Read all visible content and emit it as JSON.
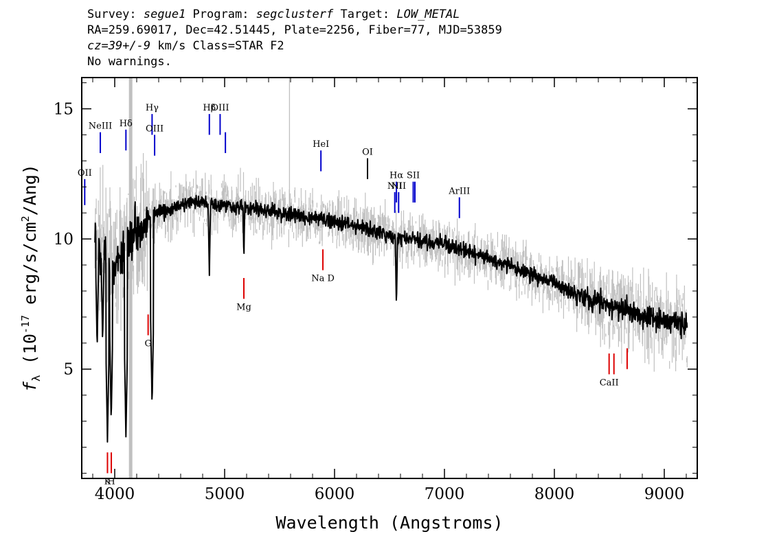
{
  "header": {
    "line1": {
      "survey_label": "Survey: ",
      "survey": "segue1",
      "program_label": " Program: ",
      "program": "segclusterf",
      "target_label": " Target: ",
      "target": "LOW_METAL"
    },
    "line2": "RA=259.69017, Dec=42.51445, Plate=2256, Fiber=77, MJD=53859",
    "line3": {
      "cz_label": "cz=",
      "cz": "39+/-9",
      "rest": " km/s Class=STAR F2"
    },
    "line4": "No warnings."
  },
  "colors": {
    "flux": "#000000",
    "error": "#c0c0c0",
    "emission": "#0000cc",
    "absorption": "#dd0000",
    "emission_alt": "#000000"
  },
  "chart_data": {
    "type": "line",
    "xlabel": "Wavelength (Angstroms)",
    "ylabel_prefix": "f",
    "ylabel_sub": "λ",
    "ylabel_mid": " (10",
    "ylabel_exp": "-17",
    "ylabel_unit": " erg/s/cm",
    "ylabel_exp2": "2",
    "ylabel_end": "/Ang)",
    "xlim": [
      3700,
      9300
    ],
    "ylim": [
      0.8,
      16.2
    ],
    "x_ticks": [
      4000,
      5000,
      6000,
      7000,
      8000,
      9000
    ],
    "y_ticks": [
      5,
      10,
      15
    ],
    "spectrum_range": [
      3820,
      9210
    ],
    "continuum": [
      [
        3820,
        10.0
      ],
      [
        3900,
        9.5
      ],
      [
        4000,
        8.9
      ],
      [
        4100,
        9.8
      ],
      [
        4200,
        10.4
      ],
      [
        4300,
        10.8
      ],
      [
        4400,
        11.0
      ],
      [
        4500,
        11.1
      ],
      [
        4600,
        11.3
      ],
      [
        4700,
        11.4
      ],
      [
        4800,
        11.4
      ],
      [
        5000,
        11.3
      ],
      [
        5200,
        11.2
      ],
      [
        5500,
        11.0
      ],
      [
        5800,
        10.8
      ],
      [
        6000,
        10.7
      ],
      [
        6200,
        10.5
      ],
      [
        6500,
        10.1
      ],
      [
        7000,
        9.8
      ],
      [
        7500,
        9.1
      ],
      [
        8000,
        8.3
      ],
      [
        8500,
        7.4
      ],
      [
        9000,
        6.9
      ],
      [
        9210,
        6.7
      ]
    ],
    "absorption_features": [
      {
        "x": 3934,
        "y": 2.2
      },
      {
        "x": 3968,
        "y": 3.0
      },
      {
        "x": 4102,
        "y": 2.4
      },
      {
        "x": 4340,
        "y": 3.6
      },
      {
        "x": 4861,
        "y": 8.6
      },
      {
        "x": 5175,
        "y": 9.2
      },
      {
        "x": 6563,
        "y": 7.4
      },
      {
        "x": 3890,
        "y": 6.0
      },
      {
        "x": 3840,
        "y": 5.8
      }
    ],
    "error_spike": {
      "x": 5590,
      "y_top": 16.2
    },
    "bad_pixel_column": {
      "x": 4145
    },
    "emission_lines": [
      {
        "label": "OII",
        "x": 3727,
        "y0": 11.3,
        "y1": 12.3,
        "color": "blue"
      },
      {
        "label": "NeIII",
        "x": 3869,
        "y0": 13.3,
        "y1": 14.1,
        "color": "blue"
      },
      {
        "label": "Hδ",
        "x": 4102,
        "y0": 13.4,
        "y1": 14.2,
        "color": "blue"
      },
      {
        "label": "Hγ",
        "x": 4340,
        "y0": 14.0,
        "y1": 14.8,
        "color": "blue"
      },
      {
        "label": "OIII",
        "x": 4363,
        "y0": 13.2,
        "y1": 14.0,
        "color": "blue"
      },
      {
        "label": "Hβ",
        "x": 4861,
        "y0": 14.0,
        "y1": 14.8,
        "color": "blue"
      },
      {
        "label": "OIII",
        "x": 4959,
        "y0": 14.0,
        "y1": 14.8,
        "color": "blue"
      },
      {
        "label": "",
        "x": 5007,
        "y0": 13.3,
        "y1": 14.1,
        "color": "blue"
      },
      {
        "label": "HeI",
        "x": 5876,
        "y0": 12.6,
        "y1": 13.4,
        "color": "blue"
      },
      {
        "label": "OI",
        "x": 6300,
        "y0": 12.3,
        "y1": 13.1,
        "color": "black"
      },
      {
        "label": "NII",
        "x": 6548,
        "y0": 11.0,
        "y1": 11.8,
        "color": "blue"
      },
      {
        "label": "Hα",
        "x": 6563,
        "y0": 11.4,
        "y1": 12.2,
        "color": "blue"
      },
      {
        "label": "NII",
        "x": 6583,
        "y0": 11.0,
        "y1": 11.8,
        "color": "blue"
      },
      {
        "label": "SII",
        "x": 6716,
        "y0": 11.4,
        "y1": 12.2,
        "color": "blue"
      },
      {
        "label": "",
        "x": 6731,
        "y0": 11.4,
        "y1": 12.2,
        "color": "blue"
      },
      {
        "label": "ArIII",
        "x": 7136,
        "y0": 10.8,
        "y1": 11.6,
        "color": "blue"
      }
    ],
    "absorption_lines": [
      {
        "label": "K",
        "x": 3934,
        "y0": 1.0,
        "y1": 1.8
      },
      {
        "label": "H",
        "x": 3969,
        "y0": 1.0,
        "y1": 1.8
      },
      {
        "label": "G",
        "x": 4304,
        "y0": 6.3,
        "y1": 7.1
      },
      {
        "label": "Mg",
        "x": 5175,
        "y0": 7.7,
        "y1": 8.5
      },
      {
        "label": "Na D",
        "x": 5894,
        "y0": 8.8,
        "y1": 9.6
      },
      {
        "label": "CaII",
        "x": 8498,
        "y0": 4.8,
        "y1": 5.6
      },
      {
        "label": "",
        "x": 8542,
        "y0": 4.8,
        "y1": 5.6
      },
      {
        "label": "",
        "x": 8662,
        "y0": 5.0,
        "y1": 5.8
      }
    ]
  }
}
